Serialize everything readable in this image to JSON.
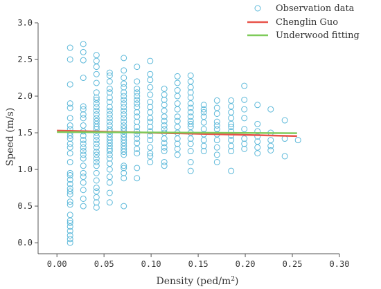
{
  "chart_data": {
    "type": "scatter",
    "xlabel_main": "Density (ped/m",
    "xlabel_sup": "2",
    "xlabel_end": ")",
    "ylabel": "Speed (m/s)",
    "xlim": [
      -0.02,
      0.3
    ],
    "ylim": [
      -0.15,
      3.0
    ],
    "xticks": [
      0.0,
      0.05,
      0.1,
      0.15,
      0.2,
      0.25,
      0.3
    ],
    "xtick_labels": [
      "0.00",
      "0.05",
      "0.10",
      "0.15",
      "0.20",
      "0.25",
      "0.30"
    ],
    "yticks": [
      0.0,
      0.5,
      1.0,
      1.5,
      2.0,
      2.5,
      3.0
    ],
    "ytick_labels": [
      "0.0",
      "0.5",
      "1.0",
      "1.5",
      "2.0",
      "2.5",
      "3.0"
    ],
    "legend_position": "top-right",
    "colors": {
      "observation": "#5bb8d9",
      "chenglin": "#e8534a",
      "underwood": "#7ecb5a",
      "axis": "#555555"
    },
    "series": [
      {
        "name": "Observation data",
        "kind": "scatter",
        "x": [
          0.014,
          0.014,
          0.014,
          0.014,
          0.014,
          0.014,
          0.014,
          0.014,
          0.014,
          0.014,
          0.014,
          0.014,
          0.014,
          0.014,
          0.014,
          0.014,
          0.014,
          0.014,
          0.014,
          0.014,
          0.014,
          0.014,
          0.014,
          0.014,
          0.014,
          0.014,
          0.014,
          0.014,
          0.014,
          0.014,
          0.014,
          0.014,
          0.028,
          0.028,
          0.028,
          0.028,
          0.028,
          0.028,
          0.028,
          0.028,
          0.028,
          0.028,
          0.028,
          0.028,
          0.028,
          0.028,
          0.028,
          0.028,
          0.028,
          0.028,
          0.028,
          0.028,
          0.028,
          0.028,
          0.028,
          0.028,
          0.042,
          0.042,
          0.042,
          0.042,
          0.042,
          0.042,
          0.042,
          0.042,
          0.042,
          0.042,
          0.042,
          0.042,
          0.042,
          0.042,
          0.042,
          0.042,
          0.042,
          0.042,
          0.042,
          0.042,
          0.042,
          0.042,
          0.042,
          0.042,
          0.042,
          0.042,
          0.042,
          0.042,
          0.042,
          0.042,
          0.042,
          0.042,
          0.042,
          0.042,
          0.056,
          0.056,
          0.056,
          0.056,
          0.056,
          0.056,
          0.056,
          0.056,
          0.056,
          0.056,
          0.056,
          0.056,
          0.056,
          0.056,
          0.056,
          0.056,
          0.056,
          0.056,
          0.056,
          0.056,
          0.056,
          0.056,
          0.056,
          0.056,
          0.056,
          0.056,
          0.056,
          0.056,
          0.056,
          0.056,
          0.071,
          0.071,
          0.071,
          0.071,
          0.071,
          0.071,
          0.071,
          0.071,
          0.071,
          0.071,
          0.071,
          0.071,
          0.071,
          0.071,
          0.071,
          0.071,
          0.071,
          0.071,
          0.071,
          0.071,
          0.071,
          0.071,
          0.071,
          0.071,
          0.071,
          0.071,
          0.071,
          0.071,
          0.071,
          0.071,
          0.085,
          0.085,
          0.085,
          0.085,
          0.085,
          0.085,
          0.085,
          0.085,
          0.085,
          0.085,
          0.085,
          0.085,
          0.085,
          0.085,
          0.085,
          0.085,
          0.085,
          0.085,
          0.085,
          0.085,
          0.099,
          0.099,
          0.099,
          0.099,
          0.099,
          0.099,
          0.099,
          0.099,
          0.099,
          0.099,
          0.099,
          0.099,
          0.099,
          0.099,
          0.099,
          0.099,
          0.099,
          0.099,
          0.114,
          0.114,
          0.114,
          0.114,
          0.114,
          0.114,
          0.114,
          0.114,
          0.114,
          0.114,
          0.114,
          0.114,
          0.114,
          0.114,
          0.114,
          0.114,
          0.128,
          0.128,
          0.128,
          0.128,
          0.128,
          0.128,
          0.128,
          0.128,
          0.128,
          0.128,
          0.128,
          0.128,
          0.128,
          0.128,
          0.142,
          0.142,
          0.142,
          0.142,
          0.142,
          0.142,
          0.142,
          0.142,
          0.142,
          0.142,
          0.142,
          0.142,
          0.142,
          0.142,
          0.142,
          0.142,
          0.142,
          0.142,
          0.156,
          0.156,
          0.156,
          0.156,
          0.156,
          0.156,
          0.156,
          0.156,
          0.156,
          0.156,
          0.17,
          0.17,
          0.17,
          0.17,
          0.17,
          0.17,
          0.17,
          0.17,
          0.17,
          0.17,
          0.17,
          0.185,
          0.185,
          0.185,
          0.185,
          0.185,
          0.185,
          0.185,
          0.185,
          0.185,
          0.185,
          0.185,
          0.185,
          0.199,
          0.199,
          0.199,
          0.199,
          0.199,
          0.199,
          0.199,
          0.199,
          0.213,
          0.213,
          0.213,
          0.213,
          0.213,
          0.213,
          0.213,
          0.227,
          0.227,
          0.227,
          0.227,
          0.227,
          0.242,
          0.242,
          0.242,
          0.256
        ],
        "y": [
          2.66,
          2.5,
          2.16,
          1.9,
          1.84,
          1.7,
          1.55,
          1.5,
          1.46,
          1.42,
          1.35,
          1.3,
          1.22,
          0.95,
          0.92,
          0.86,
          0.8,
          0.74,
          0.7,
          0.66,
          0.56,
          0.52,
          0.38,
          0.3,
          0.27,
          0.22,
          0.16,
          0.1,
          0.05,
          0.0,
          1.6,
          1.1,
          2.71,
          2.6,
          2.49,
          2.25,
          1.86,
          1.82,
          1.6,
          1.52,
          1.46,
          1.4,
          1.35,
          1.3,
          1.2,
          1.15,
          1.05,
          0.95,
          0.9,
          0.82,
          0.72,
          0.6,
          0.5,
          1.7,
          1.75,
          1.25,
          2.56,
          2.48,
          2.4,
          2.3,
          2.18,
          2.05,
          1.95,
          1.9,
          1.85,
          1.8,
          1.75,
          1.7,
          1.66,
          1.62,
          1.58,
          1.55,
          1.5,
          1.45,
          1.4,
          1.35,
          1.3,
          1.24,
          1.15,
          1.1,
          1.05,
          0.95,
          0.85,
          0.75,
          0.62,
          0.55,
          0.48,
          1.98,
          1.2,
          0.7,
          2.32,
          2.28,
          2.2,
          2.1,
          2.05,
          1.98,
          1.92,
          1.85,
          1.8,
          1.75,
          1.7,
          1.65,
          1.6,
          1.55,
          1.52,
          1.48,
          1.44,
          1.4,
          1.36,
          1.32,
          1.28,
          1.25,
          1.2,
          1.15,
          1.08,
          1.0,
          0.9,
          0.82,
          0.68,
          0.55,
          2.52,
          2.35,
          2.25,
          2.17,
          2.12,
          2.05,
          2.0,
          1.95,
          1.9,
          1.85,
          1.8,
          1.75,
          1.7,
          1.65,
          1.6,
          1.56,
          1.52,
          1.48,
          1.44,
          1.4,
          1.36,
          1.32,
          1.28,
          1.24,
          1.2,
          1.05,
          1.02,
          0.95,
          0.88,
          0.5,
          2.4,
          2.2,
          2.1,
          2.05,
          2.0,
          1.95,
          1.9,
          1.85,
          1.78,
          1.72,
          1.65,
          1.58,
          1.52,
          1.48,
          1.42,
          1.36,
          1.28,
          1.22,
          1.02,
          0.88,
          2.48,
          2.3,
          2.22,
          2.12,
          2.02,
          1.92,
          1.85,
          1.78,
          1.7,
          1.65,
          1.58,
          1.52,
          1.46,
          1.4,
          1.3,
          1.22,
          1.18,
          1.1,
          2.1,
          2.02,
          1.95,
          1.88,
          1.8,
          1.72,
          1.66,
          1.6,
          1.55,
          1.5,
          1.42,
          1.36,
          1.3,
          1.25,
          1.1,
          1.05,
          2.27,
          2.18,
          2.08,
          2.0,
          1.9,
          1.82,
          1.72,
          1.66,
          1.58,
          1.5,
          1.42,
          1.35,
          1.28,
          1.2,
          2.28,
          2.2,
          2.12,
          2.05,
          1.98,
          1.9,
          1.84,
          1.78,
          1.72,
          1.66,
          1.58,
          1.5,
          1.42,
          1.35,
          1.25,
          1.1,
          0.98,
          1.62,
          1.88,
          1.82,
          1.72,
          1.64,
          1.55,
          1.48,
          1.4,
          1.32,
          1.25,
          1.78,
          1.94,
          1.84,
          1.76,
          1.65,
          1.55,
          1.48,
          1.4,
          1.3,
          1.2,
          1.1,
          1.6,
          1.94,
          1.86,
          1.78,
          1.7,
          1.62,
          1.52,
          1.46,
          1.4,
          1.32,
          1.25,
          0.98,
          1.58,
          2.14,
          1.95,
          1.82,
          1.7,
          1.55,
          1.42,
          1.35,
          1.28,
          1.88,
          1.62,
          1.52,
          1.45,
          1.38,
          1.3,
          1.22,
          1.82,
          1.5,
          1.4,
          1.32,
          1.26,
          1.67,
          1.42,
          1.18,
          1.4
        ]
      },
      {
        "name": "Chenglin Guo",
        "kind": "line",
        "x": [
          0.0,
          0.255
        ],
        "y": [
          1.53,
          1.455
        ]
      },
      {
        "name": "Underwood fitting",
        "kind": "line",
        "x": [
          0.0,
          0.255
        ],
        "y": [
          1.51,
          1.495
        ]
      }
    ]
  }
}
